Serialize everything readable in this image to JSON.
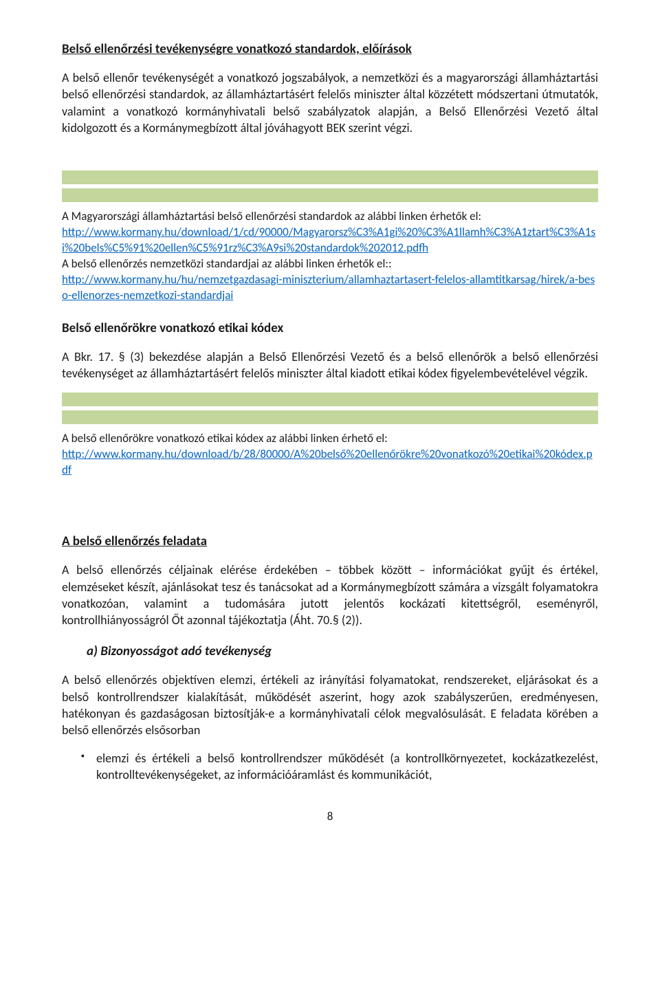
{
  "section1": {
    "title": "Belső ellenőrzési tevékenységre vonatkozó standardok, előírások",
    "para": "A belső ellenőr tevékenységét a vonatkozó jogszabályok, a nemzetközi és a magyarországi államháztartási belső ellenőrzési standardok, az államháztartásért felelős miniszter által közzétett módszertani útmutatók, valamint a vonatkozó kormányhivatali belső szabályzatok alapján, a Belső Ellenőrzési Vezető által kidolgozott és a Kormánymegbízott által jóváhagyott BEK szerint végzi."
  },
  "linkblock1": {
    "intro1": "A Magyarországi államháztartási belső ellenőrzési standardok az alábbi linken érhetők el:",
    "url1": "http://www.kormany.hu/download/1/cd/90000/Magyarorsz%C3%A1gi%20%C3%A1llamh%C3%A1ztart%C3%A1si%20bels%C5%91%20ellen%C5%91rz%C3%A9si%20standardok%202012.pdfh",
    "intro2": "A belső ellenőrzés nemzetközi standardjai az alábbi linken érhetők el::",
    "url2": "http://www.kormany.hu/hu/nemzetgazdasagi-miniszterium/allamhaztartasert-felelos-allamtitkarsag/hirek/a-beso-ellenorzes-nemzetkozi-standardjai"
  },
  "section2": {
    "title": "Belső ellenőrökre vonatkozó etikai kódex",
    "para": "A Bkr. 17. § (3) bekezdése alapján a Belső Ellenőrzési Vezető és a belső ellenőrök a belső ellenőrzési tevékenységet az államháztartásért felelős miniszter által kiadott etikai kódex figyelembevételével végzik."
  },
  "linkblock2": {
    "intro": "A belső ellenőrökre vonatkozó etikai kódex az alábbi linken érhető el:",
    "url": "http://www.kormany.hu/download/b/28/80000/A%20belső%20ellenőrökre%20vonatkozó%20etikai%20kódex.pdf"
  },
  "section3": {
    "title": "A belső ellenőrzés feladata",
    "para": "A belső ellenőrzés céljainak elérése érdekében – többek között – információkat gyűjt és értékel, elemzéseket készít, ajánlásokat tesz és tanácsokat ad a Kormánymegbízott számára a vizsgált folyamatokra vonatkozóan, valamint a tudomására jutott jelentős kockázati kitettségről, eseményről, kontrollhiányosságról Őt azonnal tájékoztatja (Áht. 70.§ (2)).",
    "sub_a_label": "a)  Bizonyosságot adó tevékenység",
    "sub_a_para": "A belső ellenőrzés objektíven elemzi, értékeli az irányítási folyamatokat, rendszereket, eljárásokat és a belső kontrollrendszer kialakítását, működését aszerint, hogy azok szabályszerűen, eredményesen, hatékonyan és gazdaságosan biztosítják-e a kormányhivatali célok megvalósulását. E feladata körében a belső ellenőrzés elsősorban",
    "bullet1": "elemzi és értékeli a belső kontrollrendszer működését (a kontrollkörnyezetet, kockázatkezelést, kontrolltevékenységeket, az információáramlást és kommunikációt,"
  },
  "page_number": "8",
  "colors": {
    "greenbar": "#c3d69b",
    "link": "#0563c1",
    "text": "#1a1a1a",
    "background": "#ffffff"
  }
}
